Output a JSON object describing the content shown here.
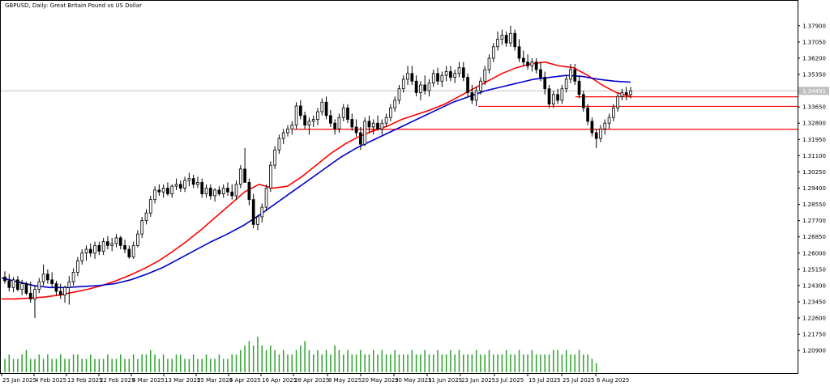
{
  "chart_data": {
    "type": "candlestick",
    "title": "GBPUSD, Daily:  Great Britain Pound vs US Dollar",
    "symbol": "GBPUSD",
    "timeframe": "Daily",
    "description": "Great Britain Pound vs US Dollar",
    "current_price_label": "1.34491",
    "current_price": 1.34491,
    "ylim": [
      1.204,
      1.384
    ],
    "y_ticks": [
      "1.37900",
      "1.37050",
      "1.36200",
      "1.35350",
      "1.34500",
      "1.33650",
      "1.32800",
      "1.31950",
      "1.31100",
      "1.30250",
      "1.29400",
      "1.28550",
      "1.27700",
      "1.26850",
      "1.26000",
      "1.25150",
      "1.24300",
      "1.23450",
      "1.22600",
      "1.21750",
      "1.20900"
    ],
    "x_tick_labels": [
      "25 Jan 2025",
      "4 Feb 2025",
      "13 Feb 2025",
      "22 Feb 2025",
      "4 Mar 2025",
      "13 Mar 2025",
      "25 Mar 2025",
      "4 Apr 2025",
      "16 Apr 2025",
      "28 Apr 2025",
      "8 May 2025",
      "20 May 2025",
      "30 May 2025",
      "11 Jun 2025",
      "23 Jun 2025",
      "3 Jul 2025",
      "15 Jul 2025",
      "25 Jul 2025",
      "6 Aug 2025"
    ],
    "grid": false,
    "candles": [
      {
        "o": 1.2475,
        "h": 1.2505,
        "l": 1.244,
        "c": 1.2455
      },
      {
        "o": 1.2455,
        "h": 1.249,
        "l": 1.24,
        "c": 1.242
      },
      {
        "o": 1.242,
        "h": 1.2475,
        "l": 1.2395,
        "c": 1.246
      },
      {
        "o": 1.246,
        "h": 1.248,
        "l": 1.24,
        "c": 1.241
      },
      {
        "o": 1.241,
        "h": 1.246,
        "l": 1.238,
        "c": 1.244
      },
      {
        "o": 1.244,
        "h": 1.245,
        "l": 1.238,
        "c": 1.239
      },
      {
        "o": 1.239,
        "h": 1.245,
        "l": 1.234,
        "c": 1.236
      },
      {
        "o": 1.236,
        "h": 1.243,
        "l": 1.226,
        "c": 1.241
      },
      {
        "o": 1.241,
        "h": 1.247,
        "l": 1.239,
        "c": 1.245
      },
      {
        "o": 1.245,
        "h": 1.254,
        "l": 1.243,
        "c": 1.249
      },
      {
        "o": 1.249,
        "h": 1.2515,
        "l": 1.244,
        "c": 1.246
      },
      {
        "o": 1.246,
        "h": 1.25,
        "l": 1.242,
        "c": 1.244
      },
      {
        "o": 1.244,
        "h": 1.2455,
        "l": 1.238,
        "c": 1.24
      },
      {
        "o": 1.24,
        "h": 1.244,
        "l": 1.236,
        "c": 1.238
      },
      {
        "o": 1.238,
        "h": 1.243,
        "l": 1.234,
        "c": 1.242
      },
      {
        "o": 1.242,
        "h": 1.248,
        "l": 1.233,
        "c": 1.245
      },
      {
        "o": 1.245,
        "h": 1.252,
        "l": 1.243,
        "c": 1.25
      },
      {
        "o": 1.25,
        "h": 1.258,
        "l": 1.248,
        "c": 1.256
      },
      {
        "o": 1.256,
        "h": 1.262,
        "l": 1.254,
        "c": 1.26
      },
      {
        "o": 1.26,
        "h": 1.264,
        "l": 1.256,
        "c": 1.262
      },
      {
        "o": 1.262,
        "h": 1.265,
        "l": 1.258,
        "c": 1.26
      },
      {
        "o": 1.26,
        "h": 1.266,
        "l": 1.257,
        "c": 1.264
      },
      {
        "o": 1.264,
        "h": 1.266,
        "l": 1.259,
        "c": 1.261
      },
      {
        "o": 1.261,
        "h": 1.268,
        "l": 1.259,
        "c": 1.266
      },
      {
        "o": 1.266,
        "h": 1.269,
        "l": 1.262,
        "c": 1.264
      },
      {
        "o": 1.264,
        "h": 1.268,
        "l": 1.261,
        "c": 1.265
      },
      {
        "o": 1.265,
        "h": 1.27,
        "l": 1.263,
        "c": 1.268
      },
      {
        "o": 1.268,
        "h": 1.269,
        "l": 1.262,
        "c": 1.264
      },
      {
        "o": 1.264,
        "h": 1.267,
        "l": 1.26,
        "c": 1.262
      },
      {
        "o": 1.262,
        "h": 1.264,
        "l": 1.257,
        "c": 1.258
      },
      {
        "o": 1.258,
        "h": 1.266,
        "l": 1.257,
        "c": 1.264
      },
      {
        "o": 1.264,
        "h": 1.272,
        "l": 1.263,
        "c": 1.27
      },
      {
        "o": 1.27,
        "h": 1.279,
        "l": 1.268,
        "c": 1.277
      },
      {
        "o": 1.277,
        "h": 1.283,
        "l": 1.275,
        "c": 1.281
      },
      {
        "o": 1.281,
        "h": 1.29,
        "l": 1.279,
        "c": 1.288
      },
      {
        "o": 1.288,
        "h": 1.295,
        "l": 1.286,
        "c": 1.293
      },
      {
        "o": 1.293,
        "h": 1.296,
        "l": 1.29,
        "c": 1.292
      },
      {
        "o": 1.292,
        "h": 1.296,
        "l": 1.289,
        "c": 1.294
      },
      {
        "o": 1.294,
        "h": 1.297,
        "l": 1.29,
        "c": 1.291
      },
      {
        "o": 1.291,
        "h": 1.296,
        "l": 1.289,
        "c": 1.295
      },
      {
        "o": 1.295,
        "h": 1.299,
        "l": 1.293,
        "c": 1.296
      },
      {
        "o": 1.296,
        "h": 1.298,
        "l": 1.292,
        "c": 1.294
      },
      {
        "o": 1.294,
        "h": 1.3,
        "l": 1.292,
        "c": 1.298
      },
      {
        "o": 1.298,
        "h": 1.302,
        "l": 1.295,
        "c": 1.299
      },
      {
        "o": 1.299,
        "h": 1.301,
        "l": 1.294,
        "c": 1.296
      },
      {
        "o": 1.296,
        "h": 1.3,
        "l": 1.294,
        "c": 1.297
      },
      {
        "o": 1.297,
        "h": 1.299,
        "l": 1.289,
        "c": 1.291
      },
      {
        "o": 1.291,
        "h": 1.296,
        "l": 1.289,
        "c": 1.294
      },
      {
        "o": 1.294,
        "h": 1.296,
        "l": 1.288,
        "c": 1.29
      },
      {
        "o": 1.29,
        "h": 1.294,
        "l": 1.287,
        "c": 1.293
      },
      {
        "o": 1.293,
        "h": 1.295,
        "l": 1.29,
        "c": 1.291
      },
      {
        "o": 1.291,
        "h": 1.296,
        "l": 1.289,
        "c": 1.294
      },
      {
        "o": 1.294,
        "h": 1.297,
        "l": 1.29,
        "c": 1.292
      },
      {
        "o": 1.292,
        "h": 1.296,
        "l": 1.288,
        "c": 1.29
      },
      {
        "o": 1.29,
        "h": 1.298,
        "l": 1.288,
        "c": 1.296
      },
      {
        "o": 1.296,
        "h": 1.306,
        "l": 1.294,
        "c": 1.304
      },
      {
        "o": 1.304,
        "h": 1.315,
        "l": 1.298,
        "c": 1.297
      },
      {
        "o": 1.297,
        "h": 1.299,
        "l": 1.285,
        "c": 1.288
      },
      {
        "o": 1.288,
        "h": 1.291,
        "l": 1.273,
        "c": 1.275
      },
      {
        "o": 1.275,
        "h": 1.28,
        "l": 1.272,
        "c": 1.279
      },
      {
        "o": 1.279,
        "h": 1.286,
        "l": 1.276,
        "c": 1.284
      },
      {
        "o": 1.284,
        "h": 1.296,
        "l": 1.282,
        "c": 1.294
      },
      {
        "o": 1.294,
        "h": 1.308,
        "l": 1.292,
        "c": 1.306
      },
      {
        "o": 1.306,
        "h": 1.316,
        "l": 1.304,
        "c": 1.314
      },
      {
        "o": 1.314,
        "h": 1.322,
        "l": 1.312,
        "c": 1.32
      },
      {
        "o": 1.32,
        "h": 1.325,
        "l": 1.317,
        "c": 1.323
      },
      {
        "o": 1.323,
        "h": 1.327,
        "l": 1.321,
        "c": 1.325
      },
      {
        "o": 1.325,
        "h": 1.329,
        "l": 1.322,
        "c": 1.327
      },
      {
        "o": 1.327,
        "h": 1.339,
        "l": 1.325,
        "c": 1.337
      },
      {
        "o": 1.337,
        "h": 1.34,
        "l": 1.33,
        "c": 1.332
      },
      {
        "o": 1.332,
        "h": 1.334,
        "l": 1.325,
        "c": 1.327
      },
      {
        "o": 1.327,
        "h": 1.331,
        "l": 1.322,
        "c": 1.329
      },
      {
        "o": 1.329,
        "h": 1.332,
        "l": 1.326,
        "c": 1.33
      },
      {
        "o": 1.33,
        "h": 1.336,
        "l": 1.327,
        "c": 1.334
      },
      {
        "o": 1.334,
        "h": 1.341,
        "l": 1.332,
        "c": 1.339
      },
      {
        "o": 1.339,
        "h": 1.342,
        "l": 1.33,
        "c": 1.332
      },
      {
        "o": 1.332,
        "h": 1.335,
        "l": 1.326,
        "c": 1.328
      },
      {
        "o": 1.328,
        "h": 1.33,
        "l": 1.322,
        "c": 1.325
      },
      {
        "o": 1.325,
        "h": 1.333,
        "l": 1.323,
        "c": 1.331
      },
      {
        "o": 1.331,
        "h": 1.338,
        "l": 1.329,
        "c": 1.336
      },
      {
        "o": 1.336,
        "h": 1.338,
        "l": 1.328,
        "c": 1.33
      },
      {
        "o": 1.33,
        "h": 1.333,
        "l": 1.324,
        "c": 1.326
      },
      {
        "o": 1.326,
        "h": 1.33,
        "l": 1.321,
        "c": 1.323
      },
      {
        "o": 1.323,
        "h": 1.326,
        "l": 1.314,
        "c": 1.317
      },
      {
        "o": 1.317,
        "h": 1.331,
        "l": 1.316,
        "c": 1.329
      },
      {
        "o": 1.329,
        "h": 1.332,
        "l": 1.323,
        "c": 1.326
      },
      {
        "o": 1.326,
        "h": 1.33,
        "l": 1.322,
        "c": 1.328
      },
      {
        "o": 1.328,
        "h": 1.332,
        "l": 1.324,
        "c": 1.325
      },
      {
        "o": 1.325,
        "h": 1.33,
        "l": 1.322,
        "c": 1.328
      },
      {
        "o": 1.328,
        "h": 1.333,
        "l": 1.326,
        "c": 1.331
      },
      {
        "o": 1.331,
        "h": 1.338,
        "l": 1.329,
        "c": 1.336
      },
      {
        "o": 1.336,
        "h": 1.342,
        "l": 1.334,
        "c": 1.34
      },
      {
        "o": 1.34,
        "h": 1.348,
        "l": 1.338,
        "c": 1.346
      },
      {
        "o": 1.346,
        "h": 1.353,
        "l": 1.344,
        "c": 1.351
      },
      {
        "o": 1.351,
        "h": 1.358,
        "l": 1.348,
        "c": 1.354
      },
      {
        "o": 1.354,
        "h": 1.358,
        "l": 1.348,
        "c": 1.35
      },
      {
        "o": 1.35,
        "h": 1.353,
        "l": 1.342,
        "c": 1.344
      },
      {
        "o": 1.344,
        "h": 1.35,
        "l": 1.34,
        "c": 1.348
      },
      {
        "o": 1.348,
        "h": 1.353,
        "l": 1.343,
        "c": 1.345
      },
      {
        "o": 1.345,
        "h": 1.351,
        "l": 1.342,
        "c": 1.349
      },
      {
        "o": 1.349,
        "h": 1.356,
        "l": 1.347,
        "c": 1.354
      },
      {
        "o": 1.354,
        "h": 1.357,
        "l": 1.348,
        "c": 1.35
      },
      {
        "o": 1.35,
        "h": 1.355,
        "l": 1.347,
        "c": 1.353
      },
      {
        "o": 1.353,
        "h": 1.358,
        "l": 1.35,
        "c": 1.355
      },
      {
        "o": 1.355,
        "h": 1.358,
        "l": 1.35,
        "c": 1.352
      },
      {
        "o": 1.352,
        "h": 1.356,
        "l": 1.349,
        "c": 1.354
      },
      {
        "o": 1.354,
        "h": 1.36,
        "l": 1.352,
        "c": 1.357
      },
      {
        "o": 1.357,
        "h": 1.36,
        "l": 1.35,
        "c": 1.352
      },
      {
        "o": 1.352,
        "h": 1.354,
        "l": 1.342,
        "c": 1.344
      },
      {
        "o": 1.344,
        "h": 1.348,
        "l": 1.338,
        "c": 1.34
      },
      {
        "o": 1.34,
        "h": 1.347,
        "l": 1.337,
        "c": 1.345
      },
      {
        "o": 1.345,
        "h": 1.352,
        "l": 1.343,
        "c": 1.35
      },
      {
        "o": 1.35,
        "h": 1.358,
        "l": 1.348,
        "c": 1.356
      },
      {
        "o": 1.356,
        "h": 1.364,
        "l": 1.354,
        "c": 1.362
      },
      {
        "o": 1.362,
        "h": 1.37,
        "l": 1.36,
        "c": 1.368
      },
      {
        "o": 1.368,
        "h": 1.376,
        "l": 1.366,
        "c": 1.372
      },
      {
        "o": 1.372,
        "h": 1.377,
        "l": 1.369,
        "c": 1.374
      },
      {
        "o": 1.374,
        "h": 1.376,
        "l": 1.368,
        "c": 1.37
      },
      {
        "o": 1.37,
        "h": 1.379,
        "l": 1.368,
        "c": 1.375
      },
      {
        "o": 1.375,
        "h": 1.377,
        "l": 1.366,
        "c": 1.368
      },
      {
        "o": 1.368,
        "h": 1.372,
        "l": 1.36,
        "c": 1.362
      },
      {
        "o": 1.362,
        "h": 1.366,
        "l": 1.358,
        "c": 1.36
      },
      {
        "o": 1.36,
        "h": 1.364,
        "l": 1.356,
        "c": 1.358
      },
      {
        "o": 1.358,
        "h": 1.362,
        "l": 1.355,
        "c": 1.36
      },
      {
        "o": 1.36,
        "h": 1.362,
        "l": 1.354,
        "c": 1.356
      },
      {
        "o": 1.356,
        "h": 1.36,
        "l": 1.35,
        "c": 1.352
      },
      {
        "o": 1.352,
        "h": 1.355,
        "l": 1.343,
        "c": 1.346
      },
      {
        "o": 1.346,
        "h": 1.348,
        "l": 1.336,
        "c": 1.338
      },
      {
        "o": 1.338,
        "h": 1.345,
        "l": 1.336,
        "c": 1.343
      },
      {
        "o": 1.343,
        "h": 1.346,
        "l": 1.338,
        "c": 1.34
      },
      {
        "o": 1.34,
        "h": 1.348,
        "l": 1.338,
        "c": 1.346
      },
      {
        "o": 1.346,
        "h": 1.353,
        "l": 1.344,
        "c": 1.351
      },
      {
        "o": 1.351,
        "h": 1.359,
        "l": 1.349,
        "c": 1.356
      },
      {
        "o": 1.356,
        "h": 1.359,
        "l": 1.348,
        "c": 1.35
      },
      {
        "o": 1.35,
        "h": 1.353,
        "l": 1.341,
        "c": 1.343
      },
      {
        "o": 1.343,
        "h": 1.345,
        "l": 1.334,
        "c": 1.336
      },
      {
        "o": 1.336,
        "h": 1.338,
        "l": 1.327,
        "c": 1.329
      },
      {
        "o": 1.329,
        "h": 1.331,
        "l": 1.321,
        "c": 1.323
      },
      {
        "o": 1.323,
        "h": 1.325,
        "l": 1.315,
        "c": 1.32
      },
      {
        "o": 1.32,
        "h": 1.327,
        "l": 1.318,
        "c": 1.325
      },
      {
        "o": 1.325,
        "h": 1.33,
        "l": 1.322,
        "c": 1.328
      },
      {
        "o": 1.328,
        "h": 1.333,
        "l": 1.325,
        "c": 1.331
      },
      {
        "o": 1.331,
        "h": 1.338,
        "l": 1.329,
        "c": 1.336
      },
      {
        "o": 1.336,
        "h": 1.344,
        "l": 1.334,
        "c": 1.342
      },
      {
        "o": 1.342,
        "h": 1.346,
        "l": 1.34,
        "c": 1.344
      },
      {
        "o": 1.344,
        "h": 1.347,
        "l": 1.34,
        "c": 1.343
      },
      {
        "o": 1.343,
        "h": 1.347,
        "l": 1.341,
        "c": 1.3449
      }
    ],
    "series": [
      {
        "color": "#ff0000",
        "values": [
          1.236,
          1.236,
          1.2365,
          1.237,
          1.238,
          1.2395,
          1.241,
          1.243,
          1.2455,
          1.2485,
          1.252,
          1.256,
          1.261,
          1.2665,
          1.2725,
          1.279,
          1.2855,
          1.292,
          1.296,
          1.294,
          1.295,
          1.3,
          1.306,
          1.312,
          1.317,
          1.321,
          1.324,
          1.3265,
          1.33,
          1.3325,
          1.335,
          1.338,
          1.342,
          1.346,
          1.35,
          1.354,
          1.357,
          1.359,
          1.36,
          1.358,
          1.357,
          1.353,
          1.348,
          1.344,
          1.342
        ]
      },
      {
        "color": "#0000cc",
        "values": [
          1.247,
          1.245,
          1.243,
          1.242,
          1.242,
          1.2425,
          1.243,
          1.244,
          1.246,
          1.249,
          1.2525,
          1.257,
          1.2615,
          1.266,
          1.27,
          1.2745,
          1.28,
          1.286,
          1.292,
          1.298,
          1.304,
          1.31,
          1.315,
          1.319,
          1.323,
          1.327,
          1.331,
          1.335,
          1.339,
          1.342,
          1.345,
          1.347,
          1.349,
          1.351,
          1.352,
          1.353,
          1.3525,
          1.351,
          1.35,
          1.3495
        ]
      }
    ],
    "volume": [
      3,
      4,
      3,
      3,
      4,
      5,
      3,
      3,
      4,
      3,
      4,
      3,
      3,
      4,
      3,
      3,
      4,
      4,
      3,
      3,
      4,
      3,
      3,
      3,
      4,
      3,
      3,
      4,
      3,
      3,
      4,
      3,
      4,
      4,
      5,
      4,
      3,
      4,
      3,
      3,
      4,
      4,
      3,
      3,
      4,
      3,
      3,
      4,
      3,
      3,
      4,
      3,
      3,
      4,
      4,
      5,
      6,
      7,
      6,
      8,
      6,
      5,
      6,
      5,
      4,
      5,
      4,
      4,
      5,
      6,
      7,
      5,
      4,
      5,
      4,
      5,
      4,
      6,
      5,
      4,
      5,
      4,
      4,
      5,
      4,
      4,
      5,
      4,
      5,
      4,
      4,
      5,
      4,
      4,
      4,
      5,
      4,
      4,
      5,
      4,
      4,
      5,
      4,
      4,
      5,
      4,
      5,
      4,
      4,
      4,
      5,
      4,
      4,
      5,
      4,
      4,
      4,
      5,
      4,
      4,
      5,
      4,
      4,
      5,
      4,
      4,
      4,
      4,
      5,
      5,
      4,
      5,
      4,
      4,
      5,
      4,
      4,
      3,
      2
    ],
    "horizontal_lines": [
      {
        "color": "#ff0000",
        "value": 1.3418
      },
      {
        "color": "#ff0000",
        "value": 1.3368
      },
      {
        "color": "#ff0000",
        "value": 1.3248
      }
    ],
    "gray_line_value": 1.34491
  }
}
